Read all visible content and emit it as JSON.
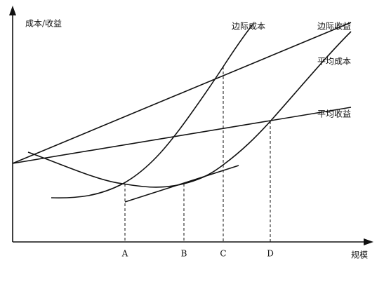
{
  "axes": {
    "y_label": "成本/收益",
    "x_label": "规模"
  },
  "curves": [
    {
      "label": "边际成本"
    },
    {
      "label": "边际收益"
    },
    {
      "label": "平均成本"
    },
    {
      "label": "平均收益"
    }
  ],
  "points": [
    {
      "label": "A"
    },
    {
      "label": "B"
    },
    {
      "label": "C"
    },
    {
      "label": "D"
    }
  ]
}
